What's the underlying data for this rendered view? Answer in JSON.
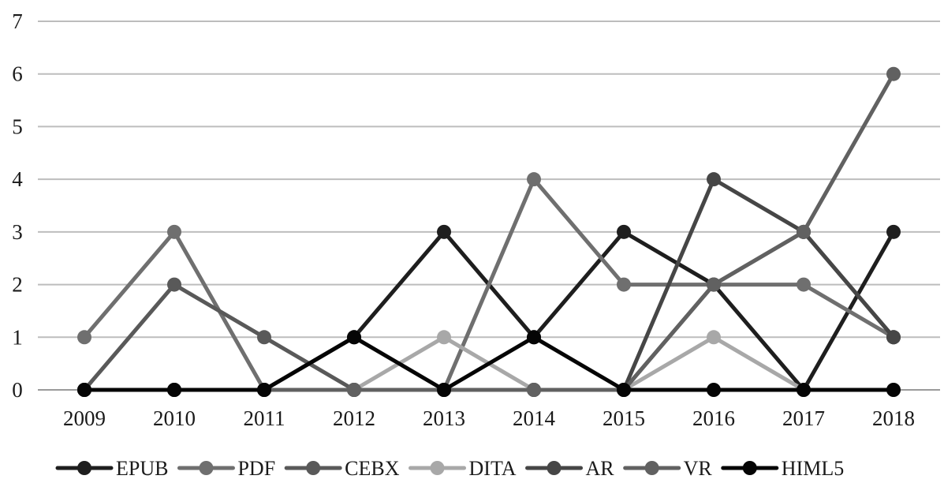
{
  "chart_data": {
    "type": "line",
    "title": "",
    "xlabel": "",
    "ylabel": "",
    "categories": [
      "2009",
      "2010",
      "2011",
      "2012",
      "2013",
      "2014",
      "2015",
      "2016",
      "2017",
      "2018"
    ],
    "ylim": [
      0,
      7
    ],
    "yticks": [
      "0",
      "1",
      "2",
      "3",
      "4",
      "5",
      "6",
      "7"
    ],
    "grid": "horizontal",
    "legend_position": "bottom",
    "series": [
      {
        "name": "EPUB",
        "color": "#1e1e1e",
        "values": [
          0,
          0,
          0,
          1,
          3,
          1,
          3,
          2,
          0,
          3
        ]
      },
      {
        "name": "PDF",
        "color": "#6f6f6f",
        "values": [
          1,
          3,
          0,
          0,
          0,
          4,
          2,
          2,
          2,
          1
        ]
      },
      {
        "name": "CEBX",
        "color": "#595959",
        "values": [
          0,
          2,
          1,
          0,
          0,
          0,
          0,
          2,
          3,
          1
        ]
      },
      {
        "name": "DITA",
        "color": "#a8a8a8",
        "values": [
          0,
          0,
          0,
          0,
          1,
          0,
          0,
          1,
          0,
          0
        ]
      },
      {
        "name": "AR",
        "color": "#464646",
        "values": [
          0,
          0,
          0,
          0,
          0,
          0,
          0,
          4,
          3,
          1
        ]
      },
      {
        "name": "VR",
        "color": "#616161",
        "values": [
          0,
          0,
          0,
          0,
          0,
          0,
          0,
          2,
          3,
          6
        ]
      },
      {
        "name": "HIML5",
        "color": "#050505",
        "values": [
          0,
          0,
          0,
          1,
          0,
          1,
          0,
          0,
          0,
          0
        ]
      }
    ]
  }
}
